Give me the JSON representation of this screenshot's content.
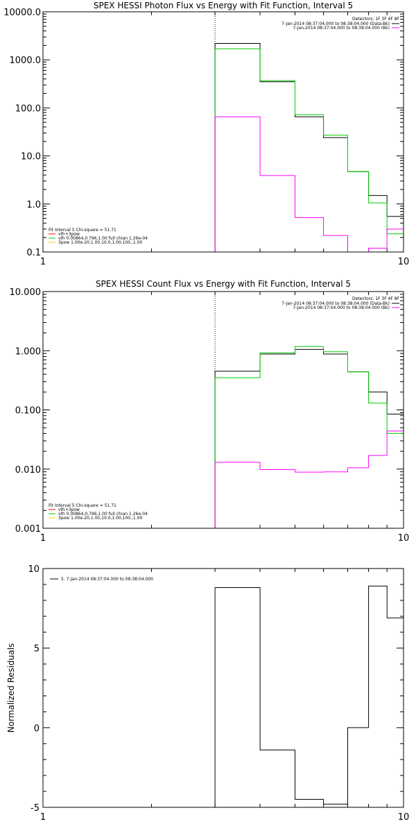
{
  "chart_data": [
    {
      "type": "line",
      "title": "SPEX HESSI Photon Flux vs Energy with Fit Function, Interval 5",
      "xlabel": "",
      "ylabel": "",
      "xscale": "log",
      "yscale": "log",
      "xlim": [
        1,
        10
      ],
      "ylim": [
        0.1,
        10000
      ],
      "ytick_labels": [
        "0.1",
        "1.0",
        "10.0",
        "100.0",
        "1000.0",
        "10000.0"
      ],
      "xtick_labels": [
        "1",
        "10"
      ],
      "vline_x": 3,
      "legend_top_right": {
        "detectors": "Detectors: 1F 3F 4F 8F",
        "entries": [
          {
            "label": "7-Jan-2014 08:37:04.000 to 08:38:04.000 (Data-Bk)",
            "color": "#000000"
          },
          {
            "label": "7-Jan-2014 08:37:04.000 to 08:38:04.000 (Bk)",
            "color": "#ff00ff"
          }
        ]
      },
      "legend_bottom_left": {
        "header": "Fit Interval 5   Chi-square = 51.71",
        "entries": [
          {
            "label": "vth+3pow",
            "color": "#ff0000"
          },
          {
            "label": "vth 0.00864,0.796,1.00  full chian 1.26e-04",
            "color": "#00cc00"
          },
          {
            "label": "3pow 1.00e-20,1.00,10.0,1.00,100.,1.00",
            "color": "#ffcc00"
          }
        ]
      },
      "bin_edges": [
        3,
        4,
        5,
        6,
        7,
        8,
        9,
        10
      ],
      "series": [
        {
          "name": "Data-Bk",
          "color": "#000000",
          "values": [
            2200,
            350,
            65,
            24,
            4.7,
            1.5,
            0.55
          ]
        },
        {
          "name": "vth",
          "color": "#00cc00",
          "values": [
            1700,
            370,
            72,
            27,
            4.7,
            1.05,
            0.24
          ]
        },
        {
          "name": "Bk",
          "color": "#ff00ff",
          "values": [
            65,
            3.9,
            0.52,
            0.22,
            0.095,
            0.12,
            0.3
          ]
        }
      ]
    },
    {
      "type": "line",
      "title": "SPEX HESSI Count Flux vs Energy with Fit Function, Interval 5",
      "xlabel": "",
      "ylabel": "",
      "xscale": "log",
      "yscale": "log",
      "xlim": [
        1,
        10
      ],
      "ylim": [
        0.001,
        10
      ],
      "ytick_labels": [
        "0.001",
        "0.010",
        "0.100",
        "1.000",
        "10.000"
      ],
      "xtick_labels": [
        "1",
        "10"
      ],
      "vline_x": 3,
      "legend_top_right": {
        "detectors": "Detectors: 1F 3F 4F 8F",
        "entries": [
          {
            "label": "7-Jan-2014 08:37:04.000 to 08:38:04.000 (Data-Bk)",
            "color": "#000000"
          },
          {
            "label": "7-Jan-2014 08:37:04.000 to 08:38:04.000 (Bk)",
            "color": "#ff00ff"
          }
        ]
      },
      "legend_bottom_left": {
        "header": "Fit Interval 5   Chi-square = 51.71",
        "entries": [
          {
            "label": "vth+3pow",
            "color": "#ff0000"
          },
          {
            "label": "vth 0.00864,0.796,1.00  full chian 1.26e-04",
            "color": "#00cc00"
          },
          {
            "label": "3pow 1.00e-20,1.00,10.0,1.00,100.,1.00",
            "color": "#ffcc00"
          }
        ]
      },
      "bin_edges": [
        3,
        4,
        5,
        6,
        7,
        8,
        9,
        10
      ],
      "series": [
        {
          "name": "Data-Bk",
          "color": "#000000",
          "values": [
            0.45,
            0.88,
            1.05,
            0.88,
            0.44,
            0.2,
            0.085
          ]
        },
        {
          "name": "vth",
          "color": "#00cc00",
          "values": [
            0.35,
            0.92,
            1.18,
            0.96,
            0.44,
            0.13,
            0.04
          ]
        },
        {
          "name": "Bk",
          "color": "#ff00ff",
          "values": [
            0.013,
            0.0098,
            0.0089,
            0.009,
            0.0105,
            0.017,
            0.044
          ]
        }
      ]
    },
    {
      "type": "line",
      "title": "",
      "xlabel": "",
      "ylabel": "Normalized Residuals",
      "xscale": "log",
      "yscale": "linear",
      "xlim": [
        1,
        10
      ],
      "ylim": [
        -5,
        10
      ],
      "yticks": [
        -5,
        0,
        5,
        10
      ],
      "ytick_labels": [
        "-5",
        "0",
        "5",
        "10"
      ],
      "xtick_labels": [
        "1",
        "10"
      ],
      "legend_top_left": {
        "entries": [
          {
            "label": "5.  7-Jan-2014 08:37:04.000 to 08:38:04.000",
            "color": "#000000"
          }
        ]
      },
      "bin_edges": [
        3,
        4,
        5,
        6,
        7,
        8,
        9,
        10
      ],
      "series": [
        {
          "name": "residuals",
          "color": "#000000",
          "values": [
            8.8,
            -1.4,
            -4.5,
            -4.8,
            0.0,
            8.9,
            6.9
          ]
        }
      ]
    }
  ]
}
